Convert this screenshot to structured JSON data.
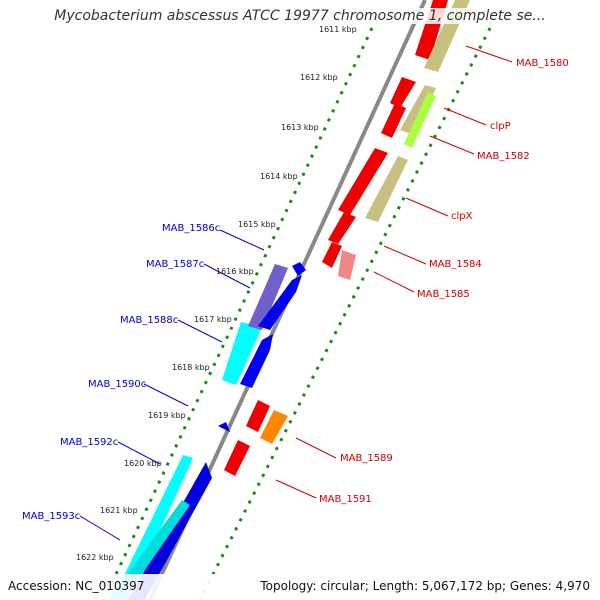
{
  "title": "Mycobacterium abscessus ATCC 19977 chromosome 1, complete se...",
  "accession": "Accession: NC_010397",
  "topology_line": "Topology: circular; Length: 5,067,172 bp; Genes: 4,970",
  "colors": {
    "forward_gene_label": "#cc0000",
    "reverse_gene_label": "#0000cc",
    "scale_dots": "#1a8a1a",
    "backbone": "#888888"
  },
  "kbp_ticks": [
    "1611 kbp",
    "1612 kbp",
    "1613 kbp",
    "1614 kbp",
    "1615 kbp",
    "1616 kbp",
    "1617 kbp",
    "1618 kbp",
    "1619 kbp",
    "1620 kbp",
    "1621 kbp",
    "1622 kbp"
  ],
  "forward_labels": [
    "MAB_1580",
    "clpP",
    "MAB_1582",
    "clpX",
    "MAB_1584",
    "MAB_1585",
    "MAB_1589",
    "MAB_1591"
  ],
  "reverse_labels": [
    "MAB_1586c",
    "MAB_1587c",
    "MAB_1588c",
    "MAB_1590c",
    "MAB_1592c",
    "MAB_1593c"
  ]
}
